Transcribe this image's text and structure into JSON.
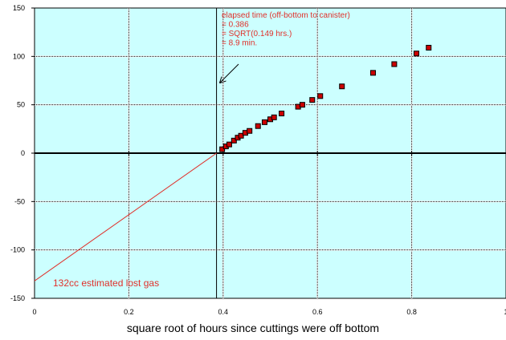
{
  "chart_data": {
    "type": "scatter",
    "title": "",
    "xlabel": "square root of hours since cuttings were off bottom",
    "ylabel": "",
    "xlim": [
      0,
      1
    ],
    "ylim": [
      -150,
      150
    ],
    "x_ticks": [
      0,
      0.2,
      0.4,
      0.6,
      0.8,
      1
    ],
    "x_tick_labels": [
      "0",
      "0.2",
      "0.4",
      "0.6",
      "0.8",
      "1"
    ],
    "y_ticks": [
      -150,
      -100,
      -50,
      0,
      50,
      100,
      150
    ],
    "y_tick_labels": [
      "-150",
      "-100",
      "-50",
      "0",
      "50",
      "100",
      "150"
    ],
    "grid": true,
    "background_color": "#ccffff",
    "series": [
      {
        "marker": "square",
        "color": "#cc0000",
        "x": [
          0.398,
          0.406,
          0.413,
          0.423,
          0.431,
          0.438,
          0.447,
          0.456,
          0.474,
          0.488,
          0.5,
          0.508,
          0.524,
          0.559,
          0.568,
          0.589,
          0.606,
          0.652,
          0.718,
          0.763,
          0.81,
          0.836
        ],
        "y": [
          4,
          7,
          9,
          13,
          16,
          18,
          21,
          23,
          28,
          32,
          35,
          37,
          41,
          48,
          50,
          55,
          59,
          69,
          83,
          92,
          103,
          109
        ]
      }
    ],
    "fit_line": {
      "color": "#e0302a",
      "x": [
        0,
        0.386
      ],
      "y": [
        -132,
        0
      ]
    },
    "reference_line": {
      "x": 0.386,
      "color": "#000000"
    },
    "annotations": {
      "elapsed": [
        "elapsed time (off-bottom to canister)",
        "= 0.386",
        "= SQRT(0.149 hrs.)",
        "= 8.9 min."
      ],
      "lost_gas": "132cc estimated lost gas"
    }
  }
}
